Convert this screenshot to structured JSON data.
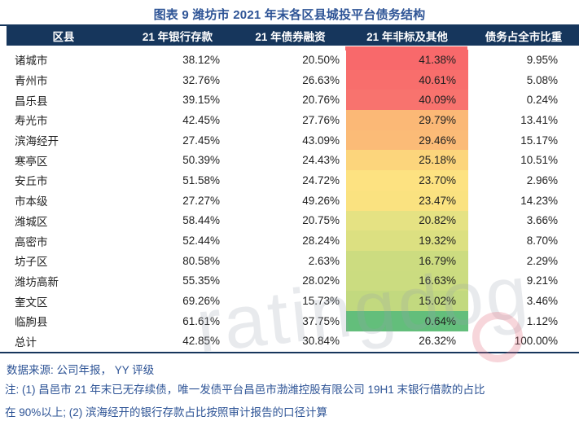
{
  "title": "图表 9 潍坊市 2021 年末各区县城投平台债务结构",
  "colors": {
    "header_bg": "#16365C",
    "title_blue": "#2E5496",
    "note_blue": "#2E5496",
    "accent_red": "#F8696B",
    "border_navy": "#16365C",
    "heat_max_red": "#F8696B",
    "heat_mid_yellow": "#FFEB84",
    "heat_min_green": "#63BE7B"
  },
  "table": {
    "headers": [
      "区县",
      "21 年银行存款",
      "21 年债券融资",
      "21 年非标及其他",
      "债务占全市比重"
    ],
    "rows": [
      {
        "name": "诸城市",
        "bank": "38.12%",
        "bond": "20.50%",
        "nonstd": "41.38%",
        "share": "9.95%",
        "heat_color": "#F8696B"
      },
      {
        "name": "青州市",
        "bank": "32.76%",
        "bond": "26.63%",
        "nonstd": "40.61%",
        "share": "5.08%",
        "heat_color": "#F86E6C"
      },
      {
        "name": "昌乐县",
        "bank": "39.15%",
        "bond": "20.76%",
        "nonstd": "40.09%",
        "share": "0.24%",
        "heat_color": "#F8736E"
      },
      {
        "name": "寿光市",
        "bank": "42.45%",
        "bond": "27.76%",
        "nonstd": "29.79%",
        "share": "13.41%",
        "heat_color": "#FBB876"
      },
      {
        "name": "滨海经开",
        "bank": "27.45%",
        "bond": "43.09%",
        "nonstd": "29.46%",
        "share": "15.17%",
        "heat_color": "#FBBB77"
      },
      {
        "name": "寒亭区",
        "bank": "50.39%",
        "bond": "24.43%",
        "nonstd": "25.18%",
        "share": "10.51%",
        "heat_color": "#FCD57C"
      },
      {
        "name": "安丘市",
        "bank": "51.58%",
        "bond": "24.72%",
        "nonstd": "23.70%",
        "share": "2.96%",
        "heat_color": "#FDE281"
      },
      {
        "name": "市本级",
        "bank": "27.27%",
        "bond": "49.26%",
        "nonstd": "23.47%",
        "share": "14.23%",
        "heat_color": "#FAE280"
      },
      {
        "name": "潍城区",
        "bank": "58.44%",
        "bond": "20.75%",
        "nonstd": "20.82%",
        "share": "3.66%",
        "heat_color": "#E5E283"
      },
      {
        "name": "高密市",
        "bank": "52.44%",
        "bond": "28.24%",
        "nonstd": "19.32%",
        "share": "8.70%",
        "heat_color": "#DCE081"
      },
      {
        "name": "坊子区",
        "bank": "80.58%",
        "bond": "2.63%",
        "nonstd": "16.79%",
        "share": "2.29%",
        "heat_color": "#CCDC80"
      },
      {
        "name": "潍坊高新",
        "bank": "55.35%",
        "bond": "28.02%",
        "nonstd": "16.63%",
        "share": "9.21%",
        "heat_color": "#CBDC80"
      },
      {
        "name": "奎文区",
        "bank": "69.26%",
        "bond": "15.73%",
        "nonstd": "15.02%",
        "share": "3.46%",
        "heat_color": "#C2D97F"
      },
      {
        "name": "临朐县",
        "bank": "61.61%",
        "bond": "37.75%",
        "nonstd": "0.64%",
        "share": "1.12%",
        "heat_color": "#63BE7B"
      },
      {
        "name": "总计",
        "bank": "42.85%",
        "bond": "30.84%",
        "nonstd": "26.32%",
        "share": "100.00%",
        "heat_color": ""
      }
    ]
  },
  "footer": {
    "source": "数据来源: 公司年报， YY 评级",
    "note_line1": "注: (1) 昌邑市 21 年末已无存续债，唯一发债平台昌邑市渤潍控股有限公司 19H1 末银行借款的占比",
    "note_line2": "在 90%以上; (2) 滨海经开的银行存款占比按照审计报告的口径计算"
  },
  "watermark": {
    "text": "ratingdog"
  },
  "chart_data": {
    "type": "table",
    "title": "图表 9 潍坊市 2021 年末各区县城投平台债务结构",
    "columns": [
      "区县",
      "21 年银行存款",
      "21 年债券融资",
      "21 年非标及其他",
      "债务占全市比重"
    ],
    "rows": [
      [
        "诸城市",
        38.12,
        20.5,
        41.38,
        9.95
      ],
      [
        "青州市",
        32.76,
        26.63,
        40.61,
        5.08
      ],
      [
        "昌乐县",
        39.15,
        20.76,
        40.09,
        0.24
      ],
      [
        "寿光市",
        42.45,
        27.76,
        29.79,
        13.41
      ],
      [
        "滨海经开",
        27.45,
        43.09,
        29.46,
        15.17
      ],
      [
        "寒亭区",
        50.39,
        24.43,
        25.18,
        10.51
      ],
      [
        "安丘市",
        51.58,
        24.72,
        23.7,
        2.96
      ],
      [
        "市本级",
        27.27,
        49.26,
        23.47,
        14.23
      ],
      [
        "潍城区",
        58.44,
        20.75,
        20.82,
        3.66
      ],
      [
        "高密市",
        52.44,
        28.24,
        19.32,
        8.7
      ],
      [
        "坊子区",
        80.58,
        2.63,
        16.79,
        2.29
      ],
      [
        "潍坊高新",
        55.35,
        28.02,
        16.63,
        9.21
      ],
      [
        "奎文区",
        69.26,
        15.73,
        15.02,
        3.46
      ],
      [
        "临朐县",
        61.61,
        37.75,
        0.64,
        1.12
      ],
      [
        "总计",
        42.85,
        30.84,
        26.32,
        100.0
      ]
    ],
    "units": "percent",
    "heatmap": {
      "column": "21 年非标及其他",
      "scale": "red-yellow-green",
      "max_value": 41.38,
      "min_value": 0.64,
      "excluded_row": "总计"
    }
  }
}
